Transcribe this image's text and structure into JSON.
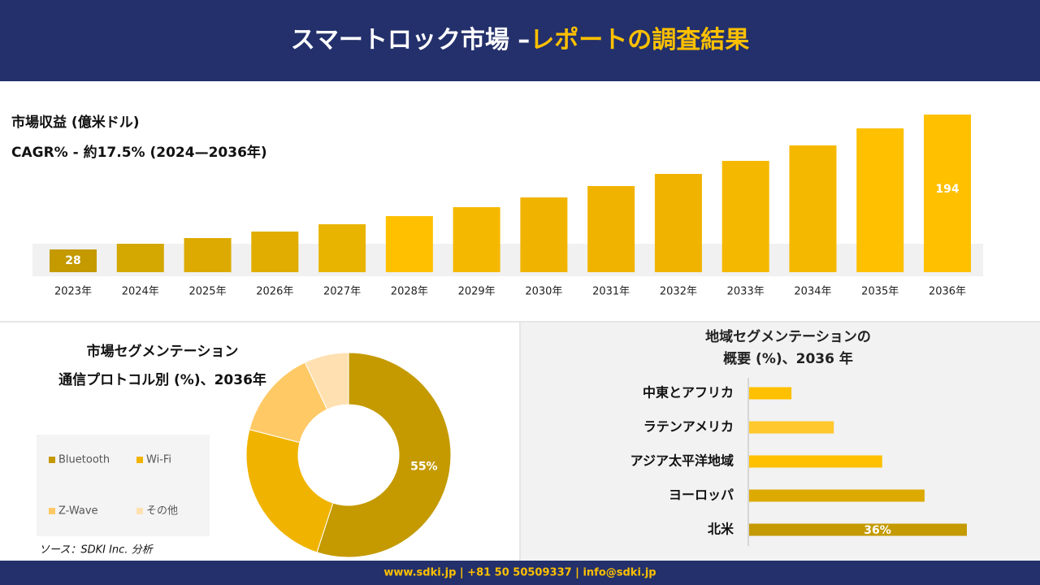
{
  "header": {
    "title_main": "スマートロック市場 –",
    "title_accent": "レポートの調査結果"
  },
  "chart_data": [
    {
      "type": "bar",
      "orientation": "vertical",
      "title": "市場収益 (億米ドル)",
      "subtitle": "CAGR% - 約17.5% (2024—2036年)",
      "categories": [
        "2023年",
        "2024年",
        "2025年",
        "2026年",
        "2027年",
        "2028年",
        "2029年",
        "2030年",
        "2031年",
        "2032年",
        "2033年",
        "2034年",
        "2035年",
        "2036年"
      ],
      "values": [
        28,
        35,
        42,
        50,
        59,
        69,
        80,
        92,
        106,
        121,
        137,
        156,
        177,
        194
      ],
      "value_labels": [
        "28",
        null,
        null,
        null,
        null,
        null,
        null,
        null,
        null,
        null,
        null,
        null,
        null,
        "194"
      ],
      "colors": [
        "#c49a00",
        "#d4a800",
        "#dcaa00",
        "#e0ad00",
        "#e8b400",
        "#ffc000",
        "#f5b800",
        "#f0b400",
        "#f0b400",
        "#f0b400",
        "#f5b800",
        "#f5b800",
        "#ffc000",
        "#ffc000"
      ]
    },
    {
      "type": "donut",
      "title": "市場セグメンテーション",
      "subtitle": "通信プロトコル別 (%)、2036年",
      "categories": [
        "Bluetooth",
        "Wi-Fi",
        "Z-Wave",
        "その他"
      ],
      "values": [
        55,
        24,
        14,
        7
      ],
      "value_labels": [
        "55%",
        null,
        null,
        null
      ],
      "colors": [
        "#c49a00",
        "#f0b400",
        "#ffc966",
        "#ffe0b0"
      ]
    },
    {
      "type": "bar",
      "orientation": "horizontal",
      "title": "地域セグメンテーションの",
      "subtitle": "概要 (%)、2036 年",
      "categories": [
        "中東とアフリカ",
        "ラテンアメリカ",
        "アジア太平洋地域",
        "ヨーロッパ",
        "北米"
      ],
      "values": [
        7,
        14,
        22,
        29,
        36
      ],
      "value_labels": [
        null,
        null,
        null,
        null,
        "36%"
      ],
      "colors": [
        "#ffc000",
        "#ffc82c",
        "#ffc000",
        "#dcaa00",
        "#c49a00"
      ]
    }
  ],
  "source": "ソース：SDKI Inc. 分析",
  "footer": "www.sdki.jp | +81 50 50509337 | info@sdki.jp"
}
